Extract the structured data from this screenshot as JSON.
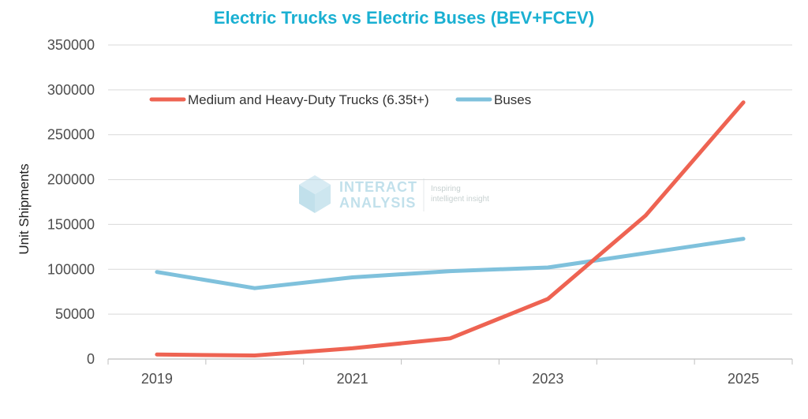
{
  "chart_data": {
    "type": "line",
    "title": "Electric Trucks vs Electric Buses (BEV+FCEV)",
    "ylabel": "Unit Shipments",
    "xlabel": "",
    "x": [
      2019,
      2020,
      2021,
      2022,
      2023,
      2024,
      2025
    ],
    "x_tick_labels": [
      "2019",
      "2021",
      "2023",
      "2025"
    ],
    "x_tick_values": [
      2019,
      2021,
      2023,
      2025
    ],
    "ylim": [
      0,
      350000
    ],
    "y_ticks": [
      "0",
      "50000",
      "100000",
      "150000",
      "200000",
      "250000",
      "300000",
      "350000"
    ],
    "y_tick_values": [
      0,
      50000,
      100000,
      150000,
      200000,
      250000,
      300000,
      350000
    ],
    "grid": "horizontal",
    "legend_position": "top-left",
    "series": [
      {
        "name": "Medium and Heavy-Duty Trucks (6.35t+)",
        "color": "#ee6352",
        "values": [
          5000,
          4000,
          12000,
          23000,
          67000,
          160000,
          286000
        ]
      },
      {
        "name": "Buses",
        "color": "#7fc1dc",
        "values": [
          97000,
          79000,
          91000,
          98000,
          102000,
          118000,
          134000
        ]
      }
    ]
  },
  "watermark": {
    "brand_line1": "INTERACT",
    "brand_line2": "ANALYSIS",
    "tagline_line1": "Inspiring",
    "tagline_line2": "intelligent insight",
    "logo_icon": "cube-logo-icon"
  },
  "colors": {
    "title": "#1ab0d2",
    "grid": "#d9d9d9",
    "axis": "#bfbfbf",
    "watermark": "#8fc7dc"
  }
}
